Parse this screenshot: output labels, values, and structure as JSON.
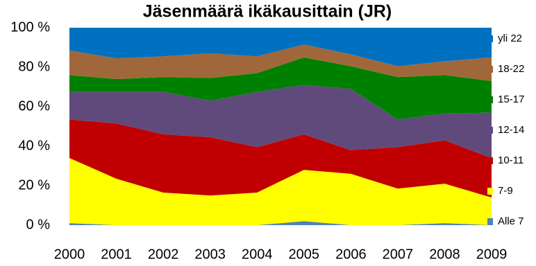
{
  "chart_data": {
    "type": "stacked_area",
    "title": "Jäsenmäärä ikäkausittain (JR)",
    "categories": [
      "2000",
      "2001",
      "2002",
      "2003",
      "2004",
      "2005",
      "2006",
      "2007",
      "2008",
      "2009"
    ],
    "ylim": [
      0,
      100
    ],
    "yticks": [
      {
        "value": 0,
        "label": "0 %"
      },
      {
        "value": 20,
        "label": "20 %"
      },
      {
        "value": 40,
        "label": "40 %"
      },
      {
        "value": 60,
        "label": "60 %"
      },
      {
        "value": 80,
        "label": "80 %"
      },
      {
        "value": 100,
        "label": "100 %"
      }
    ],
    "legend": "right",
    "series": [
      {
        "name": "Alle 7",
        "color": "#4f81bd",
        "values": [
          1,
          0,
          0,
          0,
          0,
          2,
          0,
          0,
          1,
          0
        ]
      },
      {
        "name": "7-9",
        "color": "#ffff00",
        "values": [
          33,
          23.5,
          16.5,
          15,
          16.5,
          26,
          26,
          18.5,
          20,
          14
        ]
      },
      {
        "name": "10-11",
        "color": "#c00000",
        "values": [
          19.5,
          28,
          29.5,
          29.5,
          23,
          18,
          12,
          21,
          22,
          20
        ]
      },
      {
        "name": "12-14",
        "color": "#604a7b",
        "values": [
          14,
          16,
          21.5,
          18.5,
          28,
          25,
          31,
          14,
          13.5,
          23
        ]
      },
      {
        "name": "15-17",
        "color": "#008000",
        "values": [
          8.5,
          6.5,
          7.5,
          11.5,
          9.5,
          14,
          11.5,
          21.5,
          19.5,
          16
        ]
      },
      {
        "name": "18-22",
        "color": "#a0683a",
        "values": [
          12.5,
          10.5,
          10.5,
          12.5,
          8.5,
          6.5,
          6,
          5.5,
          7,
          12
        ]
      },
      {
        "name": "yli 22",
        "color": "#0070c0",
        "values": [
          11.5,
          15.5,
          14.5,
          13,
          14.5,
          8.5,
          13.5,
          19.5,
          17,
          15
        ]
      }
    ]
  }
}
